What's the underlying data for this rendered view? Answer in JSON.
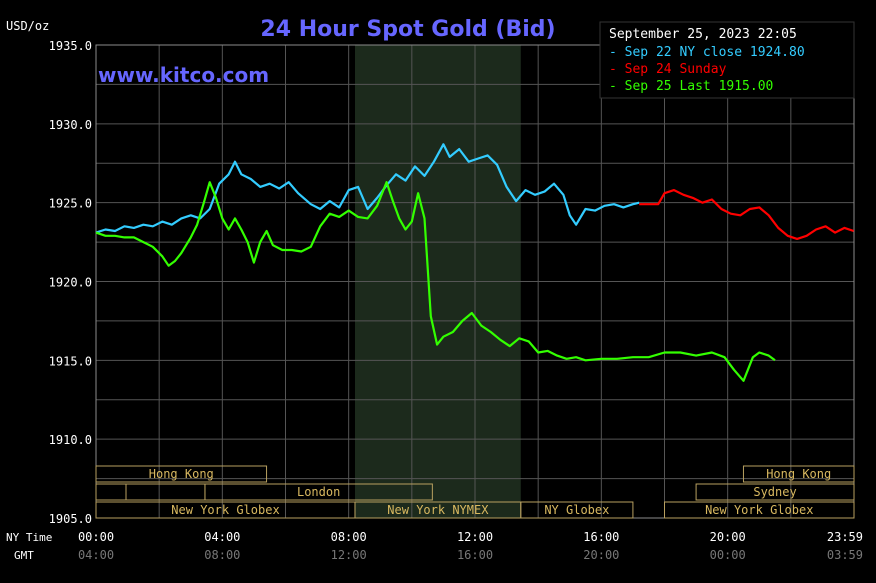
{
  "chart_data": {
    "type": "line",
    "title": "24 Hour Spot Gold (Bid)",
    "watermark": "www.kitco.com",
    "ylabel": "USD/oz",
    "timestamp": "September 25, 2023 22:05",
    "ylim": [
      1905,
      1935
    ],
    "y_ticks": [
      "1935.0",
      "1930.0",
      "1925.0",
      "1920.0",
      "1915.0",
      "1910.0",
      "1905.0"
    ],
    "xlim": [
      0,
      24
    ],
    "x_ticks": [
      {
        "ny": "00:00",
        "gmt": "04:00"
      },
      {
        "ny": "04:00",
        "gmt": "08:00"
      },
      {
        "ny": "08:00",
        "gmt": "12:00"
      },
      {
        "ny": "12:00",
        "gmt": "16:00"
      },
      {
        "ny": "16:00",
        "gmt": "20:00"
      },
      {
        "ny": "20:00",
        "gmt": "00:00"
      },
      {
        "ny": "23:59",
        "gmt": "03:59"
      }
    ],
    "x_row_labels": {
      "ny": "NY Time",
      "gmt": "GMT"
    },
    "grid": true,
    "legend_position": "top-right",
    "sessions": [
      {
        "label": "Hong Kong",
        "row": 0,
        "start": 0.0,
        "end": 5.4
      },
      {
        "label": "Hong Kong",
        "row": 0,
        "start": 20.5,
        "end": 24.0
      },
      {
        "label": "",
        "row": 1,
        "start": 0.0,
        "end": 0.95
      },
      {
        "label": "",
        "row": 1,
        "start": 0.95,
        "end": 3.45
      },
      {
        "label": "London",
        "row": 1,
        "start": 3.45,
        "end": 10.65
      },
      {
        "label": "Sydney",
        "row": 1,
        "start": 19.0,
        "end": 24.0
      },
      {
        "label": "New York Globex",
        "row": 2,
        "start": 0.0,
        "end": 8.2
      },
      {
        "label": "New York NYMEX",
        "row": 2,
        "start": 8.2,
        "end": 13.45
      },
      {
        "label": "NY Globex",
        "row": 2,
        "start": 13.45,
        "end": 17.0
      },
      {
        "label": "New York Globex",
        "row": 2,
        "start": 18.0,
        "end": 24.0
      }
    ],
    "highlight_range": [
      8.2,
      13.45
    ],
    "series": [
      {
        "name": "Sep 22 NY close 1924.80",
        "color": "#33ccff",
        "points": [
          [
            0,
            1923.1
          ],
          [
            0.3,
            1923.3
          ],
          [
            0.6,
            1923.2
          ],
          [
            0.9,
            1923.5
          ],
          [
            1.2,
            1923.4
          ],
          [
            1.5,
            1923.6
          ],
          [
            1.8,
            1923.5
          ],
          [
            2.1,
            1923.8
          ],
          [
            2.4,
            1923.6
          ],
          [
            2.7,
            1924.0
          ],
          [
            3.0,
            1924.2
          ],
          [
            3.3,
            1924.0
          ],
          [
            3.6,
            1924.6
          ],
          [
            3.9,
            1926.2
          ],
          [
            4.2,
            1926.8
          ],
          [
            4.4,
            1927.6
          ],
          [
            4.6,
            1926.8
          ],
          [
            4.9,
            1926.5
          ],
          [
            5.2,
            1926.0
          ],
          [
            5.5,
            1926.2
          ],
          [
            5.8,
            1925.9
          ],
          [
            6.1,
            1926.3
          ],
          [
            6.4,
            1925.6
          ],
          [
            6.8,
            1924.9
          ],
          [
            7.1,
            1924.6
          ],
          [
            7.4,
            1925.1
          ],
          [
            7.7,
            1924.7
          ],
          [
            8.0,
            1925.8
          ],
          [
            8.3,
            1926.0
          ],
          [
            8.6,
            1924.6
          ],
          [
            8.9,
            1925.3
          ],
          [
            9.2,
            1926.1
          ],
          [
            9.5,
            1926.8
          ],
          [
            9.8,
            1926.4
          ],
          [
            10.1,
            1927.3
          ],
          [
            10.4,
            1926.7
          ],
          [
            10.7,
            1927.6
          ],
          [
            11.0,
            1928.7
          ],
          [
            11.2,
            1927.9
          ],
          [
            11.5,
            1928.4
          ],
          [
            11.8,
            1927.6
          ],
          [
            12.1,
            1927.8
          ],
          [
            12.4,
            1928.0
          ],
          [
            12.7,
            1927.4
          ],
          [
            13.0,
            1926.0
          ],
          [
            13.3,
            1925.1
          ],
          [
            13.6,
            1925.8
          ],
          [
            13.9,
            1925.5
          ],
          [
            14.2,
            1925.7
          ],
          [
            14.5,
            1926.2
          ],
          [
            14.8,
            1925.5
          ],
          [
            15.0,
            1924.2
          ],
          [
            15.2,
            1923.6
          ],
          [
            15.5,
            1924.6
          ],
          [
            15.8,
            1924.5
          ],
          [
            16.1,
            1924.8
          ],
          [
            16.4,
            1924.9
          ],
          [
            16.7,
            1924.7
          ],
          [
            17.0,
            1924.9
          ],
          [
            17.2,
            1925.0
          ]
        ]
      },
      {
        "name": "Sep 24 Sunday",
        "color": "#ff0000",
        "points": [
          [
            17.2,
            1924.9
          ],
          [
            17.5,
            1924.9
          ],
          [
            17.8,
            1924.9
          ],
          [
            18.0,
            1925.6
          ],
          [
            18.3,
            1925.8
          ],
          [
            18.6,
            1925.5
          ],
          [
            18.9,
            1925.3
          ],
          [
            19.2,
            1925.0
          ],
          [
            19.5,
            1925.2
          ],
          [
            19.8,
            1924.6
          ],
          [
            20.1,
            1924.3
          ],
          [
            20.4,
            1924.2
          ],
          [
            20.7,
            1924.6
          ],
          [
            21.0,
            1924.7
          ],
          [
            21.3,
            1924.2
          ],
          [
            21.6,
            1923.4
          ],
          [
            21.9,
            1922.9
          ],
          [
            22.2,
            1922.7
          ],
          [
            22.5,
            1922.9
          ],
          [
            22.8,
            1923.3
          ],
          [
            23.1,
            1923.5
          ],
          [
            23.4,
            1923.1
          ],
          [
            23.7,
            1923.4
          ],
          [
            23.99,
            1923.2
          ]
        ]
      },
      {
        "name": "Sep 25 Last 1915.00",
        "color": "#33ff00",
        "points": [
          [
            0,
            1923.1
          ],
          [
            0.3,
            1922.9
          ],
          [
            0.6,
            1922.9
          ],
          [
            0.9,
            1922.8
          ],
          [
            1.2,
            1922.8
          ],
          [
            1.5,
            1922.5
          ],
          [
            1.8,
            1922.2
          ],
          [
            2.1,
            1921.6
          ],
          [
            2.3,
            1921.0
          ],
          [
            2.5,
            1921.3
          ],
          [
            2.7,
            1921.8
          ],
          [
            3.0,
            1922.8
          ],
          [
            3.2,
            1923.6
          ],
          [
            3.4,
            1924.9
          ],
          [
            3.6,
            1926.3
          ],
          [
            3.8,
            1925.3
          ],
          [
            4.0,
            1924.0
          ],
          [
            4.2,
            1923.3
          ],
          [
            4.4,
            1924.0
          ],
          [
            4.6,
            1923.3
          ],
          [
            4.8,
            1922.5
          ],
          [
            5.0,
            1921.2
          ],
          [
            5.2,
            1922.5
          ],
          [
            5.4,
            1923.2
          ],
          [
            5.6,
            1922.3
          ],
          [
            5.9,
            1922.0
          ],
          [
            6.2,
            1922.0
          ],
          [
            6.5,
            1921.9
          ],
          [
            6.8,
            1922.2
          ],
          [
            7.1,
            1923.5
          ],
          [
            7.4,
            1924.3
          ],
          [
            7.7,
            1924.1
          ],
          [
            8.0,
            1924.5
          ],
          [
            8.3,
            1924.1
          ],
          [
            8.6,
            1924.0
          ],
          [
            8.9,
            1924.8
          ],
          [
            9.2,
            1926.3
          ],
          [
            9.4,
            1925.1
          ],
          [
            9.6,
            1924.0
          ],
          [
            9.8,
            1923.3
          ],
          [
            10.0,
            1923.8
          ],
          [
            10.2,
            1925.6
          ],
          [
            10.4,
            1924.0
          ],
          [
            10.6,
            1917.8
          ],
          [
            10.8,
            1916.0
          ],
          [
            11.0,
            1916.5
          ],
          [
            11.3,
            1916.8
          ],
          [
            11.6,
            1917.5
          ],
          [
            11.9,
            1918.0
          ],
          [
            12.2,
            1917.2
          ],
          [
            12.5,
            1916.8
          ],
          [
            12.8,
            1916.3
          ],
          [
            13.1,
            1915.9
          ],
          [
            13.4,
            1916.4
          ],
          [
            13.7,
            1916.2
          ],
          [
            14.0,
            1915.5
          ],
          [
            14.3,
            1915.6
          ],
          [
            14.6,
            1915.3
          ],
          [
            14.9,
            1915.1
          ],
          [
            15.2,
            1915.2
          ],
          [
            15.5,
            1915.0
          ],
          [
            16.0,
            1915.1
          ],
          [
            16.5,
            1915.1
          ],
          [
            17.0,
            1915.2
          ],
          [
            17.5,
            1915.2
          ],
          [
            18.0,
            1915.5
          ],
          [
            18.5,
            1915.5
          ],
          [
            19.0,
            1915.3
          ],
          [
            19.5,
            1915.5
          ],
          [
            19.9,
            1915.2
          ],
          [
            20.2,
            1914.4
          ],
          [
            20.5,
            1913.7
          ],
          [
            20.8,
            1915.2
          ],
          [
            21.0,
            1915.5
          ],
          [
            21.3,
            1915.3
          ],
          [
            21.5,
            1915.0
          ]
        ]
      }
    ]
  }
}
